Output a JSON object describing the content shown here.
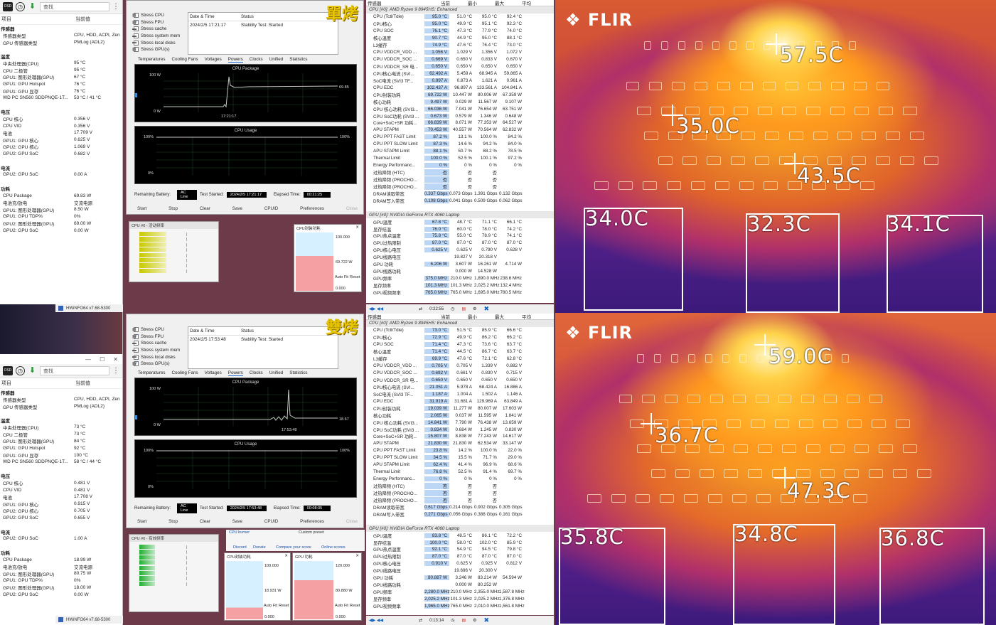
{
  "top_left": {
    "toolbar": {
      "search_placeholder": "查找",
      "more": "⋮"
    },
    "headers": [
      "项目",
      "当前值"
    ],
    "rows": [
      [
        "传感器",
        ""
      ],
      [
        "传感器类型",
        "CPU, HDD, ACPI, Zen"
      ],
      [
        "GPU 传感器类型",
        "PMLog (ADL2)"
      ],
      [
        "",
        ""
      ],
      [
        "温度",
        ""
      ],
      [
        "中央处理器(CPU)",
        "95 °C"
      ],
      [
        "CPU 二极管",
        "95 °C"
      ],
      [
        "GPU1: 图形处理器(GPU)",
        "67 °C"
      ],
      [
        "GPU1: GPU Hotspot",
        "76 °C"
      ],
      [
        "GPU1: GPU 显存",
        "76 °C"
      ],
      [
        "WD PC SN560 SDDPNQE-1T...",
        "53 °C / 41 °C"
      ],
      [
        "",
        ""
      ],
      [
        "电压",
        ""
      ],
      [
        "CPU 核心",
        "0.356 V"
      ],
      [
        "CPU VID",
        "0.356 V"
      ],
      [
        "电池",
        "17.709 V"
      ],
      [
        "GPU1: GPU 核心",
        "0.625 V"
      ],
      [
        "GPU2: GPU 核心",
        "1.069 V"
      ],
      [
        "GPU2: GPU SoC",
        "0.682 V"
      ],
      [
        "",
        ""
      ],
      [
        "电流",
        ""
      ],
      [
        "GPU2: GPU SoC",
        "0.00 A"
      ],
      [
        "",
        ""
      ],
      [
        "功耗",
        ""
      ],
      [
        "CPU Package",
        "69.83 W"
      ],
      [
        "电池充/放电",
        "交流电源"
      ],
      [
        "GPU1: 图形处理器(GPU)",
        "8.50 W"
      ],
      [
        "GPU1: GPU TDP%",
        "0%"
      ],
      [
        "GPU2: 图形处理器(GPU)",
        "69.00 W"
      ],
      [
        "GPU2: GPU SoC",
        "0.00 W"
      ]
    ]
  },
  "bottom_left": {
    "titlebar": "HWiNFO64 v7.68-5300",
    "toolbar": {
      "search_placeholder": "查找",
      "more": "⋮"
    },
    "headers": [
      "项目",
      "当前值"
    ],
    "rows": [
      [
        "传感器",
        ""
      ],
      [
        "传感器类型",
        "CPU, HDD, ACPI, Zen"
      ],
      [
        "GPU 传感器类型",
        "PMLog (ADL2)"
      ],
      [
        "",
        ""
      ],
      [
        "温度",
        ""
      ],
      [
        "中央处理器(CPU)",
        "73 °C"
      ],
      [
        "CPU 二极管",
        "73 °C"
      ],
      [
        "GPU1: 图形处理器(GPU)",
        "84 °C"
      ],
      [
        "GPU1: GPU Hotspot",
        "92 °C"
      ],
      [
        "GPU1: GPU 显存",
        "100 °C"
      ],
      [
        "WD PC SN560 SDDPNQE-1T...",
        "58 °C / 44 °C"
      ],
      [
        "",
        ""
      ],
      [
        "电压",
        ""
      ],
      [
        "CPU 核心",
        "0.481 V"
      ],
      [
        "CPU VID",
        "0.481 V"
      ],
      [
        "电池",
        "17.708 V"
      ],
      [
        "GPU1: GPU 核心",
        "0.915 V"
      ],
      [
        "GPU2: GPU 核心",
        "0.705 V"
      ],
      [
        "GPU2: GPU SoC",
        "0.655 V"
      ],
      [
        "",
        ""
      ],
      [
        "电流",
        ""
      ],
      [
        "GPU2: GPU SoC",
        "1.00 A"
      ],
      [
        "",
        ""
      ],
      [
        "功耗",
        ""
      ],
      [
        "CPU Package",
        "18.99 W"
      ],
      [
        "电池充/放电",
        "交流电源"
      ],
      [
        "GPU1: 图形处理器(GPU)",
        "80.75 W"
      ],
      [
        "GPU1: GPU TDP%",
        "0%"
      ],
      [
        "GPU2: 图形处理器(GPU)",
        "18.00 W"
      ],
      [
        "GPU2: GPU SoC",
        "0.00 W"
      ]
    ]
  },
  "stress_top": {
    "tag": "單烤",
    "checkboxes": [
      [
        "Stress CPU",
        false
      ],
      [
        "Stress FPU",
        true
      ],
      [
        "Stress cache",
        false
      ],
      [
        "Stress system mem",
        false
      ],
      [
        "Stress local disks",
        false
      ],
      [
        "Stress GPU(s)",
        false
      ]
    ],
    "dt_header": [
      "Date & Time",
      "Status"
    ],
    "dt_row": [
      "2024/2/5 17:21:17",
      "Stability Test: Started"
    ],
    "tabs": [
      "Temperatures",
      "Cooling Fans",
      "Voltages",
      "Powers",
      "Clocks",
      "Unified",
      "Statistics"
    ],
    "graph1": {
      "title": "CPU Package",
      "ymax": "100 W",
      "ymin": "0 W",
      "time": "17:21:17",
      "value": "69.85"
    },
    "graph2": {
      "title": "CPU Usage",
      "ymax": "100%",
      "ymin": "0%",
      "right": "100%"
    },
    "remaining": "Remaining Battery:",
    "ac": "AC Line",
    "started_label": "Test Started:",
    "started": "2024/2/5 17:21:17",
    "elapsed_label": "Elapsed Time:",
    "elapsed": "00:21:25",
    "buttons": [
      "Start",
      "Stop",
      "Clear",
      "Save",
      "CPUID",
      "Preferences",
      "Close"
    ],
    "clock_title": "CPU #0 - 活动频率",
    "pkg_title": "CPU封装功耗",
    "pkg_max": "100.000",
    "pkg_val": "69.722 W",
    "pkg_min": "0.000",
    "autofit": "Auto Fit",
    "reset": "Reset"
  },
  "stress_bottom": {
    "tag": "雙烤",
    "checkboxes": [
      [
        "Stress CPU",
        false
      ],
      [
        "Stress FPU",
        true
      ],
      [
        "Stress cache",
        false
      ],
      [
        "Stress system mem",
        false
      ],
      [
        "Stress local disks",
        false
      ],
      [
        "Stress GPU(s)",
        true
      ]
    ],
    "dt_header": [
      "Date & Time",
      "Status"
    ],
    "dt_row": [
      "2024/2/5 17:53:48",
      "Stability Test: Started"
    ],
    "tabs": [
      "Temperatures",
      "Cooling Fans",
      "Voltages",
      "Powers",
      "Clocks",
      "Unified",
      "Statistics"
    ],
    "graph1": {
      "title": "CPU Package",
      "ymax": "100 W",
      "ymin": "0 W",
      "time": "17:53:48",
      "value": "18.67"
    },
    "graph2": {
      "title": "CPU Usage",
      "ymax": "100%",
      "ymin": "0%",
      "right": "100%"
    },
    "remaining": "Remaining Battery:",
    "ac": "AC Line",
    "started_label": "Test Started:",
    "started": "2024/2/5 17:53:48",
    "elapsed_label": "Elapsed Time:",
    "elapsed": "00:08:35",
    "buttons": [
      "Start",
      "Stop",
      "Clear",
      "Save",
      "CPUID",
      "Preferences",
      "Close"
    ],
    "clock_title": "CPU #0 - 有效频率",
    "pkg_title": "CPU封装功耗",
    "pkg_max": "100.000",
    "pkg_val": "18.931 W",
    "pkg_min": "0.000",
    "gpu_title": "GPU 功耗",
    "gpu_max": "120.000",
    "gpu_val": "80.880 W",
    "gpu_min": "0.000",
    "autofit": "Auto Fit",
    "reset": "Reset",
    "links": [
      "CPU burner",
      "Custom preset",
      "Discord",
      "Donate",
      "Compare your score",
      "Online scores"
    ]
  },
  "sensor_top": {
    "headers": [
      "传感器",
      "当前",
      "最小",
      "最大",
      "平均"
    ],
    "cpu_group": "CPU [#0]: AMD Ryzen 9 8945HS: Enhanced",
    "cpu_rows": [
      [
        "CPU (Tctl/Tdie)",
        "95.0 °C",
        "51.0 °C",
        "95.0 °C",
        "92.4 °C"
      ],
      [
        "CPU核心",
        "95.0 °C",
        "49.9 °C",
        "95.1 °C",
        "92.3 °C"
      ],
      [
        "CPU SOC",
        "76.1 °C",
        "47.3 °C",
        "77.9 °C",
        "74.0 °C"
      ],
      [
        "核心温度",
        "90.7 °C",
        "44.9 °C",
        "95.0 °C",
        "88.1 °C"
      ],
      [
        "L3缓存",
        "74.9 °C",
        "47.6 °C",
        "76.4 °C",
        "73.0 °C"
      ],
      [
        "CPU VDDCR_VDD ...",
        "1.056 V",
        "1.029 V",
        "1.356 V",
        "1.072 V"
      ],
      [
        "CPU VDDCR_SOC ...",
        "0.669 V",
        "0.650 V",
        "0.833 V",
        "0.670 V"
      ],
      [
        "CPU VDDCR_SR 电...",
        "0.650 V",
        "0.650 V",
        "0.650 V",
        "0.650 V"
      ],
      [
        "CPU核心电流 (SVI...",
        "62.492 A",
        "5.459 A",
        "68.945 A",
        "59.865 A"
      ],
      [
        "SoC电流 (SVI3 TF...",
        "0.997 A",
        "0.873 A",
        "1.621 A",
        "0.961 A"
      ],
      [
        "CPU EDC",
        "102.437 A",
        "96.897 A",
        "133.561 A",
        "104.841 A"
      ],
      [
        "CPU封装功耗",
        "69.722 W",
        "10.447 W",
        "80.006 W",
        "67.359 W"
      ],
      [
        "核心功耗",
        "9.497 W",
        "0.029 W",
        "11.567 W",
        "9.107 W"
      ],
      [
        "CPU 核心功耗 (SVI3...",
        "66.036 W",
        "7.041 W",
        "76.654 W",
        "63.751 W"
      ],
      [
        "CPU SoC功耗 (SVI3 ...",
        "0.673 W",
        "0.579 W",
        "1.346 W",
        "0.648 W"
      ],
      [
        "Core+SoC+SR 功耗...",
        "66.839 W",
        "8.071 W",
        "77.353 W",
        "64.527 W"
      ],
      [
        "APU STAPM",
        "70.453 W",
        "40.557 W",
        "70.564 W",
        "62.832 W"
      ],
      [
        "CPU PPT FAST Limit",
        "87.2 %",
        "13.1 %",
        "100.0 %",
        "84.2 %"
      ],
      [
        "CPU PPT SLOW Limit",
        "87.3 %",
        "14.6 %",
        "94.2 %",
        "84.0 %"
      ],
      [
        "APU STAPM Limit",
        "88.1 %",
        "50.7 %",
        "88.2 %",
        "78.5 %"
      ],
      [
        "Thermal Limit",
        "100.0 %",
        "52.5 %",
        "100.1 %",
        "97.2 %"
      ],
      [
        "Energy Performanc...",
        "0 %",
        "0 %",
        "0 %",
        "0 %"
      ],
      [
        "过热降频 (HTC)",
        "否",
        "否",
        "否",
        ""
      ],
      [
        "过热降频 (PROCHO...",
        "否",
        "否",
        "否",
        ""
      ],
      [
        "过热降频 (PROCHO...",
        "否",
        "否",
        "否",
        ""
      ],
      [
        "DRAM读取带宽",
        "0.337 Gbps",
        "0.073 Gbps",
        "1.391 Gbps",
        "0.132 Gbps"
      ],
      [
        "DRAM写入带宽",
        "0.108 Gbps",
        "0.041 Gbps",
        "0.509 Gbps",
        "0.062 Gbps"
      ]
    ],
    "gpu_group": "GPU [#0]: NVIDIA GeForce RTX 4060 Laptop",
    "gpu_rows": [
      [
        "GPU温度",
        "67.8 °C",
        "48.7 °C",
        "71.1 °C",
        "66.1 °C"
      ],
      [
        "显存结温",
        "76.0 °C",
        "60.0 °C",
        "78.0 °C",
        "74.2 °C"
      ],
      [
        "GPU热点温度",
        "75.8 °C",
        "55.0 °C",
        "78.9 °C",
        "74.1 °C"
      ],
      [
        "GPU过热限制",
        "87.0 °C",
        "87.0 °C",
        "87.0 °C",
        "87.0 °C"
      ],
      [
        "GPU核心电压",
        "0.625 V",
        "0.625 V",
        "0.790 V",
        "0.628 V"
      ],
      [
        "GPU线路电压",
        "",
        "19.827 V",
        "20.318 V",
        ""
      ],
      [
        "GPU 功耗",
        "6.206 W",
        "3.607 W",
        "16.261 W",
        "4.714 W"
      ],
      [
        "GPU线路功耗",
        "",
        "0.000 W",
        "14.528 W",
        ""
      ],
      [
        "GPU频率",
        "375.0 MHz",
        "210.0 MHz",
        "1,890.0 MHz",
        "238.6 MHz"
      ],
      [
        "显存频率",
        "101.3 MHz",
        "101.3 MHz",
        "2,025.2 MHz",
        "132.4 MHz"
      ],
      [
        "GPU视频频率",
        "765.0 MHz",
        "765.0 MHz",
        "1,695.0 MHz",
        "780.5 MHz"
      ]
    ],
    "footer_time": "0:22:55"
  },
  "sensor_bottom": {
    "headers": [
      "传感器",
      "当前",
      "最小",
      "最大",
      "平均"
    ],
    "cpu_group": "CPU [#0]: AMD Ryzen 9 8945HS: Enhanced",
    "cpu_rows": [
      [
        "CPU (Tctl/Tdie)",
        "73.0 °C",
        "51.5 °C",
        "85.9 °C",
        "66.6 °C"
      ],
      [
        "CPU核心",
        "72.9 °C",
        "49.9 °C",
        "86.2 °C",
        "66.2 °C"
      ],
      [
        "CPU SOC",
        "71.4 °C",
        "47.3 °C",
        "73.6 °C",
        "63.7 °C"
      ],
      [
        "核心温度",
        "71.4 °C",
        "44.5 °C",
        "86.7 °C",
        "63.7 °C"
      ],
      [
        "L3缓存",
        "69.9 °C",
        "47.6 °C",
        "72.1 °C",
        "62.8 °C"
      ],
      [
        "CPU VDDCR_VDD ...",
        "0.705 V",
        "0.705 V",
        "1.339 V",
        "0.882 V"
      ],
      [
        "CPU VDDCR_SOC ...",
        "0.692 V",
        "0.661 V",
        "0.830 V",
        "0.715 V"
      ],
      [
        "CPU VDDCR_SR 电...",
        "0.650 V",
        "0.650 V",
        "0.650 V",
        "0.650 V"
      ],
      [
        "CPU核心电流 (SVI...",
        "21.051 A",
        "5.978 A",
        "68.424 A",
        "16.886 A"
      ],
      [
        "SoC电流 (SVI3 TF...",
        "1.187 A",
        "1.004 A",
        "1.502 A",
        "1.146 A"
      ],
      [
        "CPU EDC",
        "31.919 A",
        "31.681 A",
        "129.969 A",
        "63.849 A"
      ],
      [
        "CPU封装功耗",
        "19.039 W",
        "11.277 W",
        "80.007 W",
        "17.603 W"
      ],
      [
        "核心功耗",
        "2.065 W",
        "0.037 W",
        "11.595 W",
        "1.841 W"
      ],
      [
        "CPU 核心功耗 (SVI3...",
        "14.841 W",
        "7.790 W",
        "76.438 W",
        "13.659 W"
      ],
      [
        "CPU SoC功耗 (SVI3 ...",
        "0.834 W",
        "0.684 W",
        "1.245 W",
        "0.830 W"
      ],
      [
        "Core+SoC+SR 功耗...",
        "15.807 W",
        "8.838 W",
        "77.243 W",
        "14.617 W"
      ],
      [
        "APU STAPM",
        "21.830 W",
        "21.830 W",
        "62.534 W",
        "33.147 W"
      ],
      [
        "CPU PPT FAST Limit",
        "23.8 %",
        "14.2 %",
        "100.0 %",
        "22.0 %"
      ],
      [
        "CPU PPT SLOW Limit",
        "34.5 %",
        "15.5 %",
        "71.7 %",
        "29.0 %"
      ],
      [
        "APU STAPM Limit",
        "62.4 %",
        "41.4 %",
        "96.9 %",
        "68.6 %"
      ],
      [
        "Thermal Limit",
        "76.8 %",
        "52.5 %",
        "91.4 %",
        "69.7 %"
      ],
      [
        "Energy Performanc...",
        "0 %",
        "0 %",
        "0 %",
        "0 %"
      ],
      [
        "过热降频 (HTC)",
        "否",
        "否",
        "否",
        ""
      ],
      [
        "过热降频 (PROCHO...",
        "否",
        "否",
        "否",
        ""
      ],
      [
        "过热降频 (PROCHO...",
        "否",
        "否",
        "否",
        ""
      ],
      [
        "DRAM读取带宽",
        "0.617 Gbps",
        "0.214 Gbps",
        "0.902 Gbps",
        "0.305 Gbps"
      ],
      [
        "DRAM写入带宽",
        "0.271 Gbps",
        "0.056 Gbps",
        "0.388 Gbps",
        "0.161 Gbps"
      ]
    ],
    "gpu_group": "GPU [#0]: NVIDIA GeForce RTX 4060 Laptop",
    "gpu_rows": [
      [
        "GPU温度",
        "83.8 °C",
        "48.5 °C",
        "86.1 °C",
        "72.2 °C"
      ],
      [
        "显存结温",
        "100.0 °C",
        "58.0 °C",
        "102.0 °C",
        "85.9 °C"
      ],
      [
        "GPU热点温度",
        "92.1 °C",
        "54.9 °C",
        "94.5 °C",
        "79.8 °C"
      ],
      [
        "GPU过热限制",
        "87.0 °C",
        "87.0 °C",
        "87.0 °C",
        "87.0 °C"
      ],
      [
        "GPU核心电压",
        "0.910 V",
        "0.625 V",
        "0.925 V",
        "0.812 V"
      ],
      [
        "GPU线路电压",
        "",
        "19.696 V",
        "20.300 V",
        ""
      ],
      [
        "GPU 功耗",
        "80.887 W",
        "3.246 W",
        "83.214 W",
        "54.594 W"
      ],
      [
        "GPU线路功耗",
        "",
        "0.000 W",
        "80.252 W",
        ""
      ],
      [
        "GPU频率",
        "2,280.0 MHz",
        "210.0 MHz",
        "2,355.0 MHz",
        "1,587.8 MHz"
      ],
      [
        "显存频率",
        "2,025.2 MHz",
        "101.3 MHz",
        "2,025.2 MHz",
        "1,376.8 MHz"
      ],
      [
        "GPU视频频率",
        "1,965.0 MHz",
        "765.0 MHz",
        "2,010.0 MHz",
        "1,561.8 MHz"
      ]
    ],
    "footer_time": "0:13:14"
  },
  "thermal_top": {
    "brand": "FLIR",
    "labels": [
      "57.5C",
      "35.0C",
      "43.5C",
      "34.0C",
      "32.3C",
      "34.1C"
    ]
  },
  "thermal_bottom": {
    "brand": "FLIR",
    "labels": [
      "59.0C",
      "36.7C",
      "47.3C",
      "35.8C",
      "34.8C",
      "36.8C"
    ]
  },
  "taskbar": {
    "title": "HWiNFO64 v7.68-5300"
  }
}
